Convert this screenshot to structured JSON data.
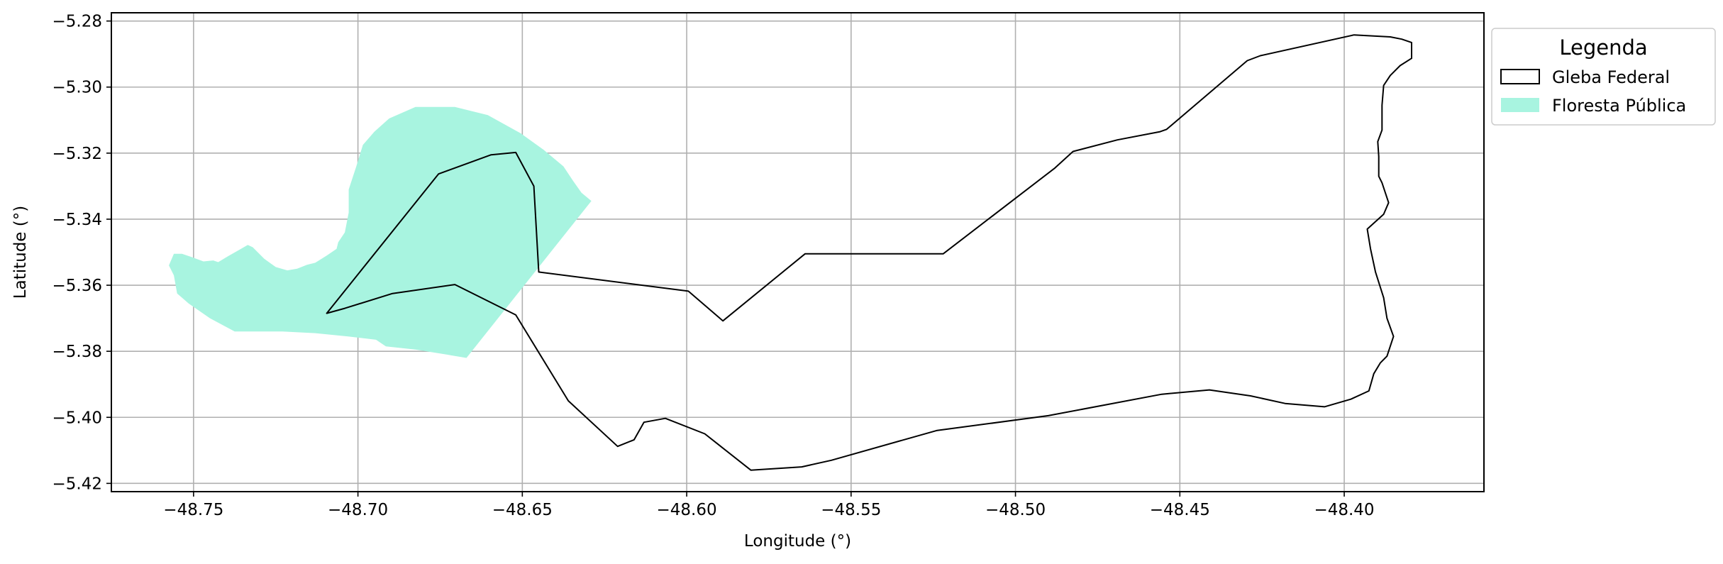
{
  "chart_data": {
    "type": "map",
    "xlabel": "Longitude (°)",
    "ylabel": "Latitude (°)",
    "xlim": [
      -48.775,
      -48.3575
    ],
    "ylim": [
      -5.4225,
      -5.2775
    ],
    "xticks": [
      -48.75,
      -48.7,
      -48.65,
      -48.6,
      -48.55,
      -48.5,
      -48.45,
      -48.4
    ],
    "xtick_labels": [
      "−48.75",
      "−48.70",
      "−48.65",
      "−48.60",
      "−48.55",
      "−48.50",
      "−48.45",
      "−48.40"
    ],
    "yticks": [
      -5.28,
      -5.3,
      -5.32,
      -5.34,
      -5.36,
      -5.38,
      -5.4,
      -5.42
    ],
    "ytick_labels": [
      "−5.28",
      "−5.30",
      "−5.32",
      "−5.34",
      "−5.36",
      "−5.38",
      "−5.40",
      "−5.42"
    ],
    "grid": true,
    "legend": {
      "title": "Legenda",
      "placement": "outside-right-top",
      "entries": [
        {
          "label": "Gleba Federal",
          "style": "outline",
          "edge_color": "#000000"
        },
        {
          "label": "Floresta Pública",
          "style": "fill",
          "fill_color": "#a8f4e0"
        }
      ]
    },
    "layers": [
      {
        "name": "Floresta Pública",
        "fill_color": "#a8f4e0",
        "coords": [
          [
            -48.756,
            -5.3505
          ],
          [
            -48.7535,
            -5.3505
          ],
          [
            -48.7505,
            -5.3515
          ],
          [
            -48.747,
            -5.3528
          ],
          [
            -48.744,
            -5.3525
          ],
          [
            -48.7425,
            -5.353
          ],
          [
            -48.7395,
            -5.3512
          ],
          [
            -48.7365,
            -5.3495
          ],
          [
            -48.7335,
            -5.3478
          ],
          [
            -48.732,
            -5.3485
          ],
          [
            -48.7285,
            -5.352
          ],
          [
            -48.725,
            -5.3545
          ],
          [
            -48.7215,
            -5.3555
          ],
          [
            -48.7185,
            -5.355
          ],
          [
            -48.7155,
            -5.3538
          ],
          [
            -48.713,
            -5.3532
          ],
          [
            -48.7095,
            -5.351
          ],
          [
            -48.7065,
            -5.349
          ],
          [
            -48.706,
            -5.347
          ],
          [
            -48.704,
            -5.344
          ],
          [
            -48.7028,
            -5.338
          ],
          [
            -48.7028,
            -5.331
          ],
          [
            -48.7005,
            -5.324
          ],
          [
            -48.6985,
            -5.3175
          ],
          [
            -48.695,
            -5.3135
          ],
          [
            -48.6905,
            -5.3095
          ],
          [
            -48.6825,
            -5.306
          ],
          [
            -48.6705,
            -5.306
          ],
          [
            -48.6605,
            -5.3085
          ],
          [
            -48.6505,
            -5.314
          ],
          [
            -48.6435,
            -5.319
          ],
          [
            -48.6375,
            -5.324
          ],
          [
            -48.6345,
            -5.3285
          ],
          [
            -48.632,
            -5.332
          ],
          [
            -48.629,
            -5.3345
          ],
          [
            -48.667,
            -5.382
          ],
          [
            -48.673,
            -5.381
          ],
          [
            -48.6825,
            -5.3795
          ],
          [
            -48.6915,
            -5.3785
          ],
          [
            -48.6945,
            -5.3765
          ],
          [
            -48.703,
            -5.3755
          ],
          [
            -48.713,
            -5.3745
          ],
          [
            -48.723,
            -5.374
          ],
          [
            -48.7375,
            -5.374
          ],
          [
            -48.745,
            -5.37
          ],
          [
            -48.7515,
            -5.3655
          ],
          [
            -48.755,
            -5.3625
          ],
          [
            -48.756,
            -5.357
          ],
          [
            -48.7575,
            -5.354
          ],
          [
            -48.756,
            -5.3505
          ]
        ]
      },
      {
        "name": "Gleba Federal",
        "edge_color": "#000000",
        "coords": [
          [
            -48.7095,
            -5.3685
          ],
          [
            -48.704,
            -5.367
          ],
          [
            -48.6895,
            -5.3625
          ],
          [
            -48.6705,
            -5.3598
          ],
          [
            -48.652,
            -5.369
          ],
          [
            -48.636,
            -5.395
          ],
          [
            -48.621,
            -5.4088
          ],
          [
            -48.616,
            -5.4068
          ],
          [
            -48.613,
            -5.4015
          ],
          [
            -48.6065,
            -5.4003
          ],
          [
            -48.5945,
            -5.405
          ],
          [
            -48.5805,
            -5.416
          ],
          [
            -48.565,
            -5.415
          ],
          [
            -48.556,
            -5.413
          ],
          [
            -48.524,
            -5.404
          ],
          [
            -48.49,
            -5.3995
          ],
          [
            -48.4555,
            -5.393
          ],
          [
            -48.441,
            -5.3917
          ],
          [
            -48.4285,
            -5.3935
          ],
          [
            -48.418,
            -5.3958
          ],
          [
            -48.406,
            -5.3968
          ],
          [
            -48.398,
            -5.3945
          ],
          [
            -48.3925,
            -5.392
          ],
          [
            -48.391,
            -5.3868
          ],
          [
            -48.389,
            -5.3835
          ],
          [
            -48.387,
            -5.3815
          ],
          [
            -48.385,
            -5.3755
          ],
          [
            -48.387,
            -5.37
          ],
          [
            -48.388,
            -5.3638
          ],
          [
            -48.3905,
            -5.356
          ],
          [
            -48.392,
            -5.349
          ],
          [
            -48.393,
            -5.343
          ],
          [
            -48.388,
            -5.3385
          ],
          [
            -48.3865,
            -5.335
          ],
          [
            -48.3885,
            -5.329
          ],
          [
            -48.3895,
            -5.327
          ],
          [
            -48.3895,
            -5.321
          ],
          [
            -48.3898,
            -5.3165
          ],
          [
            -48.3885,
            -5.313
          ],
          [
            -48.3885,
            -5.3055
          ],
          [
            -48.388,
            -5.2995
          ],
          [
            -48.386,
            -5.2965
          ],
          [
            -48.383,
            -5.2935
          ],
          [
            -48.3795,
            -5.2913
          ],
          [
            -48.3795,
            -5.2865
          ],
          [
            -48.3825,
            -5.2855
          ],
          [
            -48.386,
            -5.2848
          ],
          [
            -48.397,
            -5.2842
          ],
          [
            -48.4255,
            -5.2905
          ],
          [
            -48.4295,
            -5.292
          ],
          [
            -48.454,
            -5.3128
          ],
          [
            -48.456,
            -5.3135
          ],
          [
            -48.469,
            -5.316
          ],
          [
            -48.4825,
            -5.3195
          ],
          [
            -48.488,
            -5.3245
          ],
          [
            -48.522,
            -5.3505
          ],
          [
            -48.564,
            -5.3505
          ],
          [
            -48.589,
            -5.3708
          ],
          [
            -48.5995,
            -5.3618
          ],
          [
            -48.645,
            -5.356
          ],
          [
            -48.6465,
            -5.33
          ],
          [
            -48.652,
            -5.3198
          ],
          [
            -48.6595,
            -5.3205
          ],
          [
            -48.6755,
            -5.3263
          ],
          [
            -48.7095,
            -5.3685
          ]
        ]
      }
    ]
  }
}
